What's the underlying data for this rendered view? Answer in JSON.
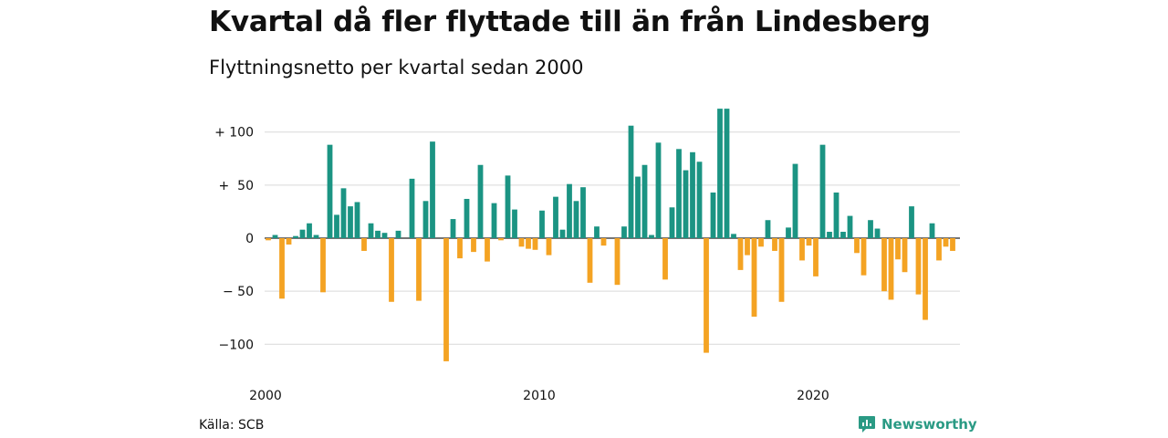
{
  "title": "Kvartal då fler flyttade till än från Lindesberg",
  "subtitle": "Flyttningsnetto per kvartal sedan 2000",
  "source": "Källa: SCB",
  "brand": {
    "name": "Newsworthy",
    "icon": "newsworthy-logo-icon"
  },
  "colors": {
    "positive": "#1b9483",
    "negative": "#f4a323",
    "grid": "#d9d9d9",
    "zero": "#222222"
  },
  "chart_data": {
    "type": "bar",
    "title": "Kvartal då fler flyttade till än från Lindesberg",
    "subtitle": "Flyttningsnetto per kvartal sedan 2000",
    "xlabel": "",
    "ylabel": "",
    "x_start": "2000 Q1",
    "x_ticks": [
      {
        "label": "2000",
        "index": 0
      },
      {
        "label": "2010",
        "index": 40
      },
      {
        "label": "2020",
        "index": 80
      }
    ],
    "y_ticks": [
      {
        "label": "+ 100",
        "value": 100
      },
      {
        "label": "+  50",
        "value": 50
      },
      {
        "label": "0",
        "value": 0
      },
      {
        "label": "− 50",
        "value": -50
      },
      {
        "label": "−100",
        "value": -100
      }
    ],
    "ylim": [
      -117,
      122
    ],
    "grid": true,
    "values": [
      -2,
      3,
      -57,
      -6,
      2,
      8,
      14,
      3,
      -51,
      88,
      22,
      47,
      30,
      34,
      -12,
      14,
      7,
      5,
      -60,
      7,
      0,
      56,
      -59,
      35,
      91,
      0,
      -116,
      18,
      -19,
      37,
      -13,
      69,
      -22,
      33,
      -2,
      59,
      27,
      -8,
      -10,
      -11,
      26,
      -16,
      39,
      8,
      51,
      35,
      48,
      -42,
      11,
      -7,
      0,
      -44,
      11,
      106,
      58,
      69,
      3,
      90,
      -39,
      29,
      84,
      64,
      81,
      72,
      -108,
      43,
      122,
      122,
      4,
      -30,
      -16,
      -74,
      -8,
      17,
      -12,
      -60,
      10,
      70,
      -21,
      -7,
      -36,
      88,
      6,
      43,
      6,
      21,
      -14,
      -35,
      17,
      9,
      -50,
      -58,
      -20,
      -32,
      30,
      -53,
      -77,
      14,
      -21,
      -8,
      -12
    ]
  }
}
